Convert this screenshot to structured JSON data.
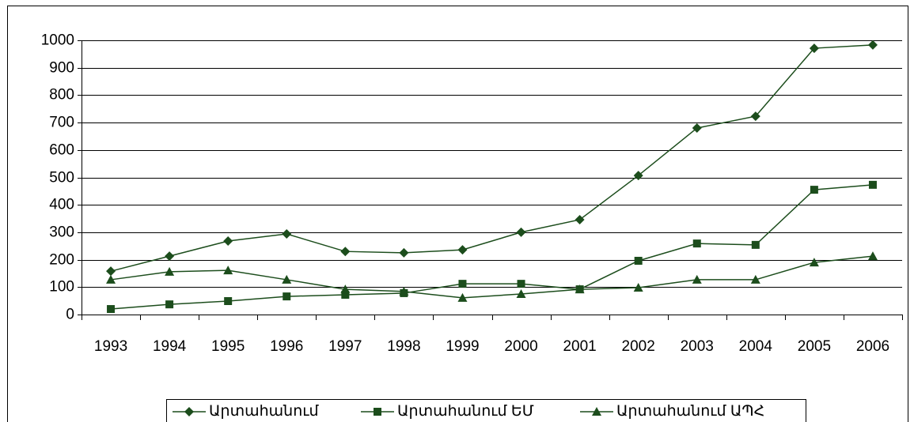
{
  "chart_data": {
    "type": "line",
    "categories": [
      "1993",
      "1994",
      "1995",
      "1996",
      "1997",
      "1998",
      "1999",
      "2000",
      "2001",
      "2002",
      "2003",
      "2004",
      "2005",
      "2006"
    ],
    "series": [
      {
        "name": "Արտահանում",
        "color": "#1c4d1c",
        "marker": "diamond",
        "values": [
          158,
          213,
          268,
          294,
          230,
          225,
          236,
          300,
          346,
          507,
          680,
          723,
          971,
          983
        ]
      },
      {
        "name": "Արտահանում ԵՄ",
        "color": "#1c4d1c",
        "marker": "square",
        "values": [
          20,
          37,
          49,
          66,
          72,
          78,
          112,
          112,
          92,
          196,
          259,
          254,
          455,
          473
        ]
      },
      {
        "name": "Արտահանում ԱՊՀ",
        "color": "#1c4d1c",
        "marker": "triangle",
        "values": [
          127,
          156,
          161,
          127,
          92,
          84,
          61,
          75,
          92,
          98,
          127,
          127,
          190,
          213
        ]
      }
    ],
    "ylim": [
      0,
      1000
    ],
    "yticks": [
      0,
      100,
      200,
      300,
      400,
      500,
      600,
      700,
      800,
      900,
      1000
    ],
    "grid": true,
    "legend": "bottom"
  }
}
